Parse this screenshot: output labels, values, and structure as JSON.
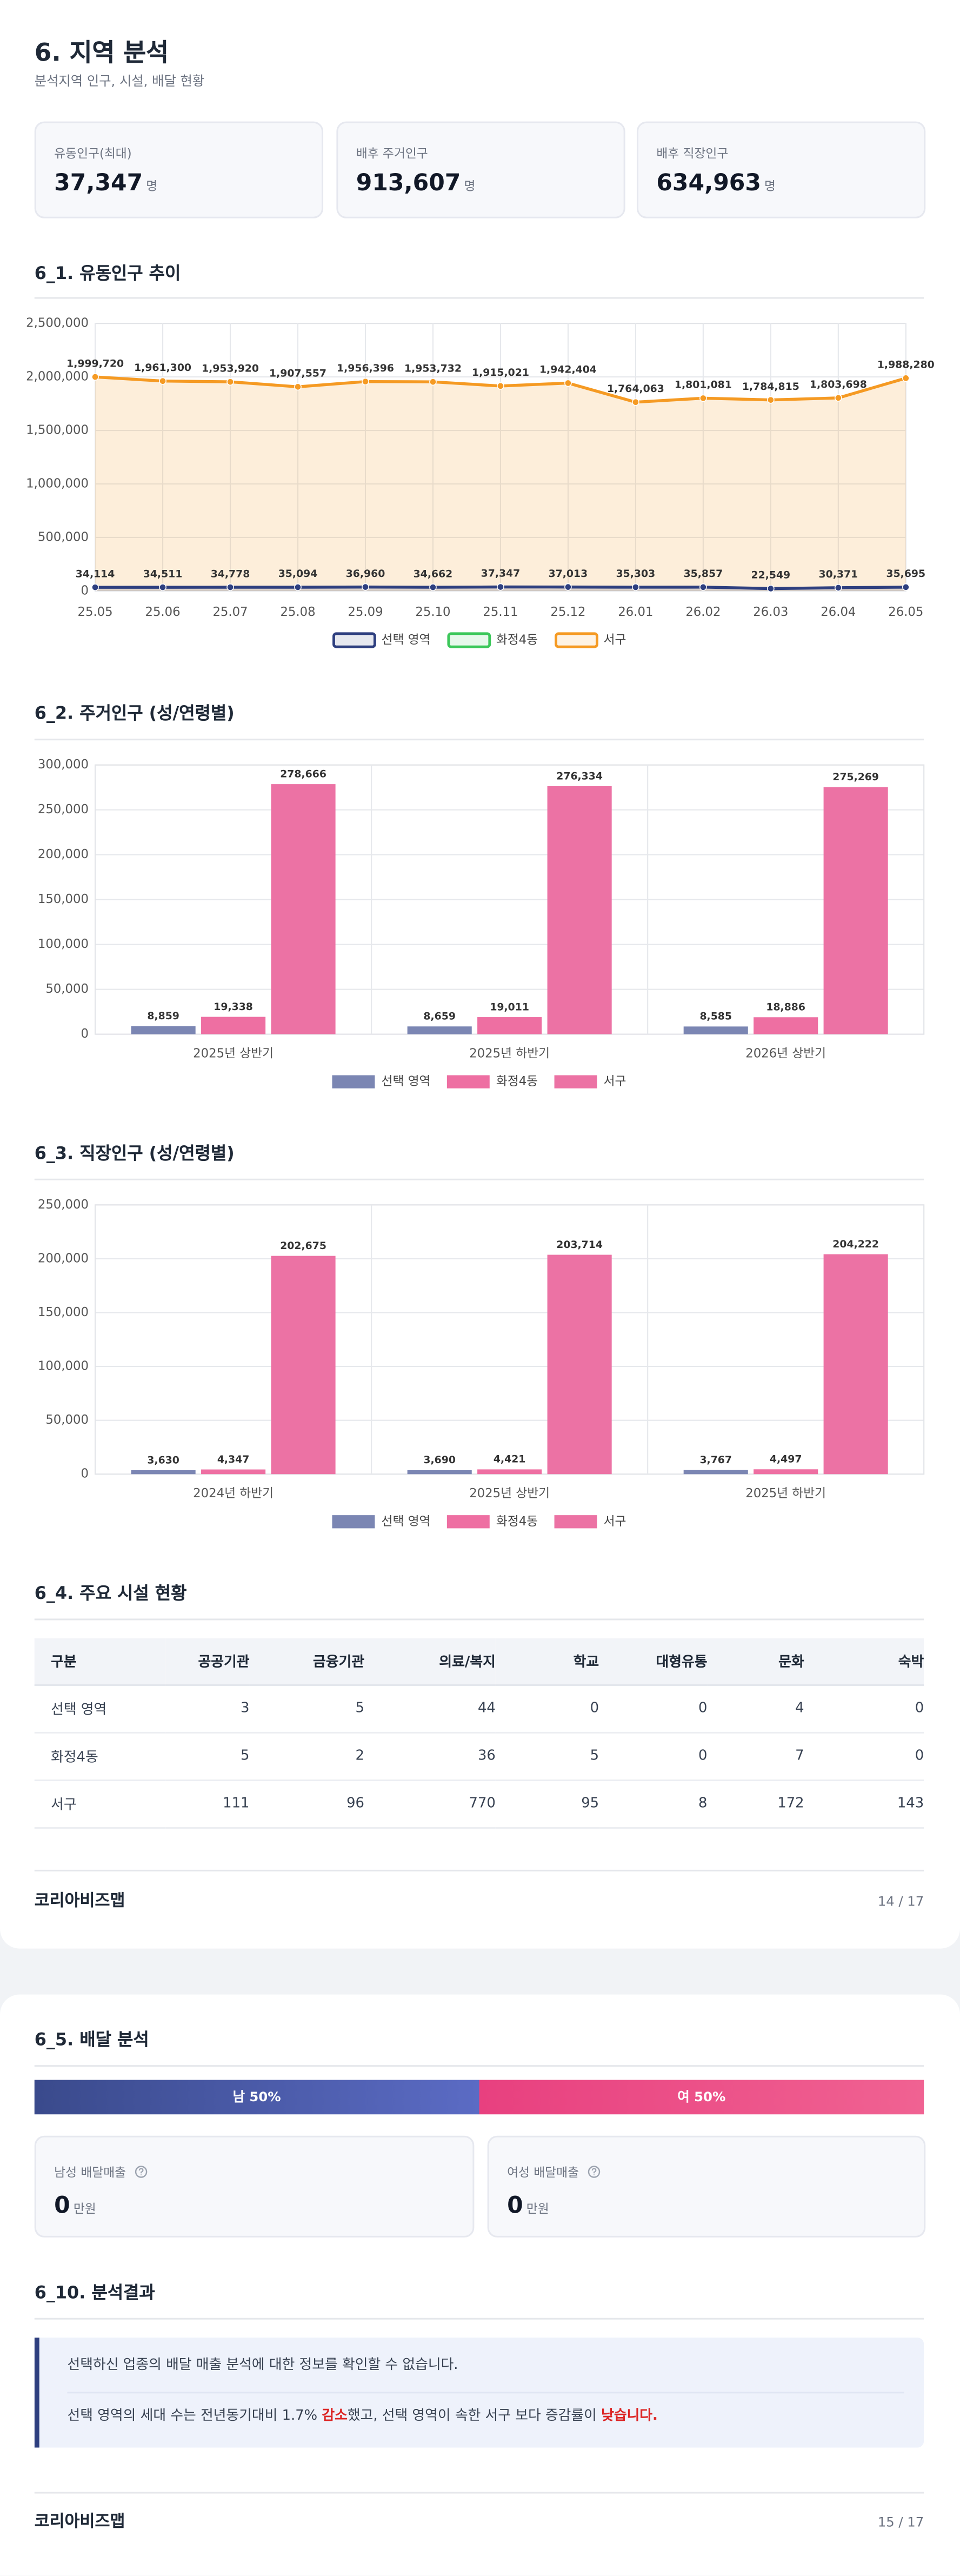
{
  "header": {
    "title": "6. 지역 분석",
    "subtitle": "분석지역 인구, 시설, 배달 현황"
  },
  "cards": [
    {
      "label": "유동인구(최대)",
      "value": "37,347",
      "unit": "명"
    },
    {
      "label": "배후 주거인구",
      "value": "913,607",
      "unit": "명"
    },
    {
      "label": "배후 직장인구",
      "value": "634,963",
      "unit": "명"
    }
  ],
  "chart_data": [
    {
      "type": "line",
      "title": "6_1. 유동인구 추이",
      "area": true,
      "grid": true,
      "categories": [
        "25.05",
        "25.06",
        "25.07",
        "25.08",
        "25.09",
        "25.10",
        "25.11",
        "25.12",
        "26.01",
        "26.02",
        "26.03",
        "26.04",
        "26.05"
      ],
      "ylim": [
        0,
        2500000
      ],
      "yticks": [
        0,
        {
          "value": 500000,
          "label": "500,000"
        },
        {
          "value": 1000000,
          "label": "1,000,000"
        },
        {
          "value": 1500000,
          "label": "1,500,000"
        },
        {
          "value": 2000000,
          "label": "2,000,000"
        },
        {
          "value": 2500000,
          "label": "2,500,000"
        }
      ],
      "series": [
        {
          "name": "선택 영역",
          "color": "#2e3f7f",
          "values": [
            34114,
            34511,
            34778,
            35094,
            36960,
            34662,
            37347,
            37013,
            35303,
            35857,
            22549,
            30371,
            35695
          ],
          "value_labels": [
            "34,114",
            "34,511",
            "34,778",
            "35,094",
            "36,960",
            "34,662",
            "37,347",
            "37,013",
            "35,303",
            "35,857",
            "22,549",
            "30,371",
            "35,695"
          ]
        },
        {
          "name": "화정4동",
          "color": "#3cc75a",
          "values": [
            null,
            null,
            null,
            null,
            null,
            null,
            null,
            null,
            null,
            null,
            null,
            null,
            null
          ]
        },
        {
          "name": "서구",
          "color": "#f59a23",
          "values": [
            1999720,
            1961300,
            1953920,
            1907557,
            1956396,
            1953732,
            1915021,
            1942404,
            1764063,
            1801081,
            1784815,
            1803698,
            1988280
          ],
          "value_labels": [
            "1,999,720",
            "1,961,300",
            "1,953,920",
            "1,907,557",
            "1,956,396",
            "1,953,732",
            "1,915,021",
            "1,942,404",
            "1,764,063",
            "1,801,081",
            "1,784,815",
            "1,803,698",
            "1,988,280"
          ]
        }
      ]
    },
    {
      "type": "bar",
      "title": "6_2. 주거인구 (성/연령별)",
      "grid": true,
      "categories": [
        "2025년 상반기",
        "2025년 하반기",
        "2026년 상반기"
      ],
      "ylim": [
        0,
        300000
      ],
      "yticks": [
        0,
        {
          "value": 50000,
          "label": "50,000"
        },
        {
          "value": 100000,
          "label": "100,000"
        },
        {
          "value": 150000,
          "label": "150,000"
        },
        {
          "value": 200000,
          "label": "200,000"
        },
        {
          "value": 250000,
          "label": "250,000"
        },
        {
          "value": 300000,
          "label": "300,000"
        }
      ],
      "series": [
        {
          "name": "선택 영역",
          "color": "#7b86b3",
          "values": [
            8859,
            8659,
            8585
          ],
          "value_labels": [
            "8,859",
            "8,659",
            "8,585"
          ]
        },
        {
          "name": "화정4동",
          "color": "#ee6fa2",
          "values": [
            19338,
            19011,
            18886
          ],
          "value_labels": [
            "19,338",
            "19,011",
            "18,886"
          ]
        },
        {
          "name": "서구",
          "color": "#ec72a4",
          "values": [
            278666,
            276334,
            275269
          ],
          "value_labels": [
            "278,666",
            "276,334",
            "275,269"
          ]
        }
      ]
    },
    {
      "type": "bar",
      "title": "6_3. 직장인구 (성/연령별)",
      "grid": true,
      "categories": [
        "2024년 하반기",
        "2025년 상반기",
        "2025년 하반기"
      ],
      "ylim": [
        0,
        250000
      ],
      "yticks": [
        0,
        {
          "value": 50000,
          "label": "50,000"
        },
        {
          "value": 100000,
          "label": "100,000"
        },
        {
          "value": 150000,
          "label": "150,000"
        },
        {
          "value": 200000,
          "label": "200,000"
        },
        {
          "value": 250000,
          "label": "250,000"
        }
      ],
      "series": [
        {
          "name": "선택 영역",
          "color": "#7b86b3",
          "values": [
            3630,
            3690,
            3767
          ],
          "value_labels": [
            "3,630",
            "3,690",
            "3,767"
          ]
        },
        {
          "name": "화정4동",
          "color": "#ee6fa2",
          "values": [
            4347,
            4421,
            4497
          ],
          "value_labels": [
            "4,347",
            "4,421",
            "4,497"
          ]
        },
        {
          "name": "서구",
          "color": "#ec72a4",
          "values": [
            202675,
            203714,
            204222
          ],
          "value_labels": [
            "202,675",
            "203,714",
            "204,222"
          ]
        }
      ]
    }
  ],
  "table": {
    "title": "6_4. 주요 시설 현황",
    "header": [
      "구분",
      "공공기관",
      "금융기관",
      "의료/복지",
      "학교",
      "대형유통",
      "문화",
      "숙박"
    ],
    "rows": [
      [
        "선택 영역",
        3,
        5,
        44,
        0,
        0,
        4,
        0
      ],
      [
        "화정4동",
        5,
        2,
        36,
        5,
        0,
        7,
        0
      ],
      [
        "서구",
        111,
        96,
        770,
        95,
        8,
        172,
        143
      ]
    ]
  },
  "footer1": {
    "brand": "코리아비즈맵",
    "page": "14 / 17"
  },
  "delivery": {
    "title": "6_5. 배달 분석",
    "male": {
      "label": "남 50%",
      "value": 50
    },
    "female": {
      "label": "여 50%",
      "value": 50
    },
    "cards": [
      {
        "label": "남성 배달매출",
        "value": "0",
        "unit": "만원"
      },
      {
        "label": "여성 배달매출",
        "value": "0",
        "unit": "만원"
      }
    ]
  },
  "result": {
    "title": "6_10. 분석결과",
    "line1": "선택하신 업종의 배달 매출 분석에 대한 정보를 확인할 수 없습니다.",
    "line2": [
      "선택 영역의 세대 수는 전년동기대비 1.7% ",
      "감소",
      "했고, 선택 영역이 속한 서구 보다 증감률이 ",
      "낮습니다."
    ]
  },
  "footer2": {
    "brand": "코리아비즈맵",
    "page": "15 / 17"
  }
}
